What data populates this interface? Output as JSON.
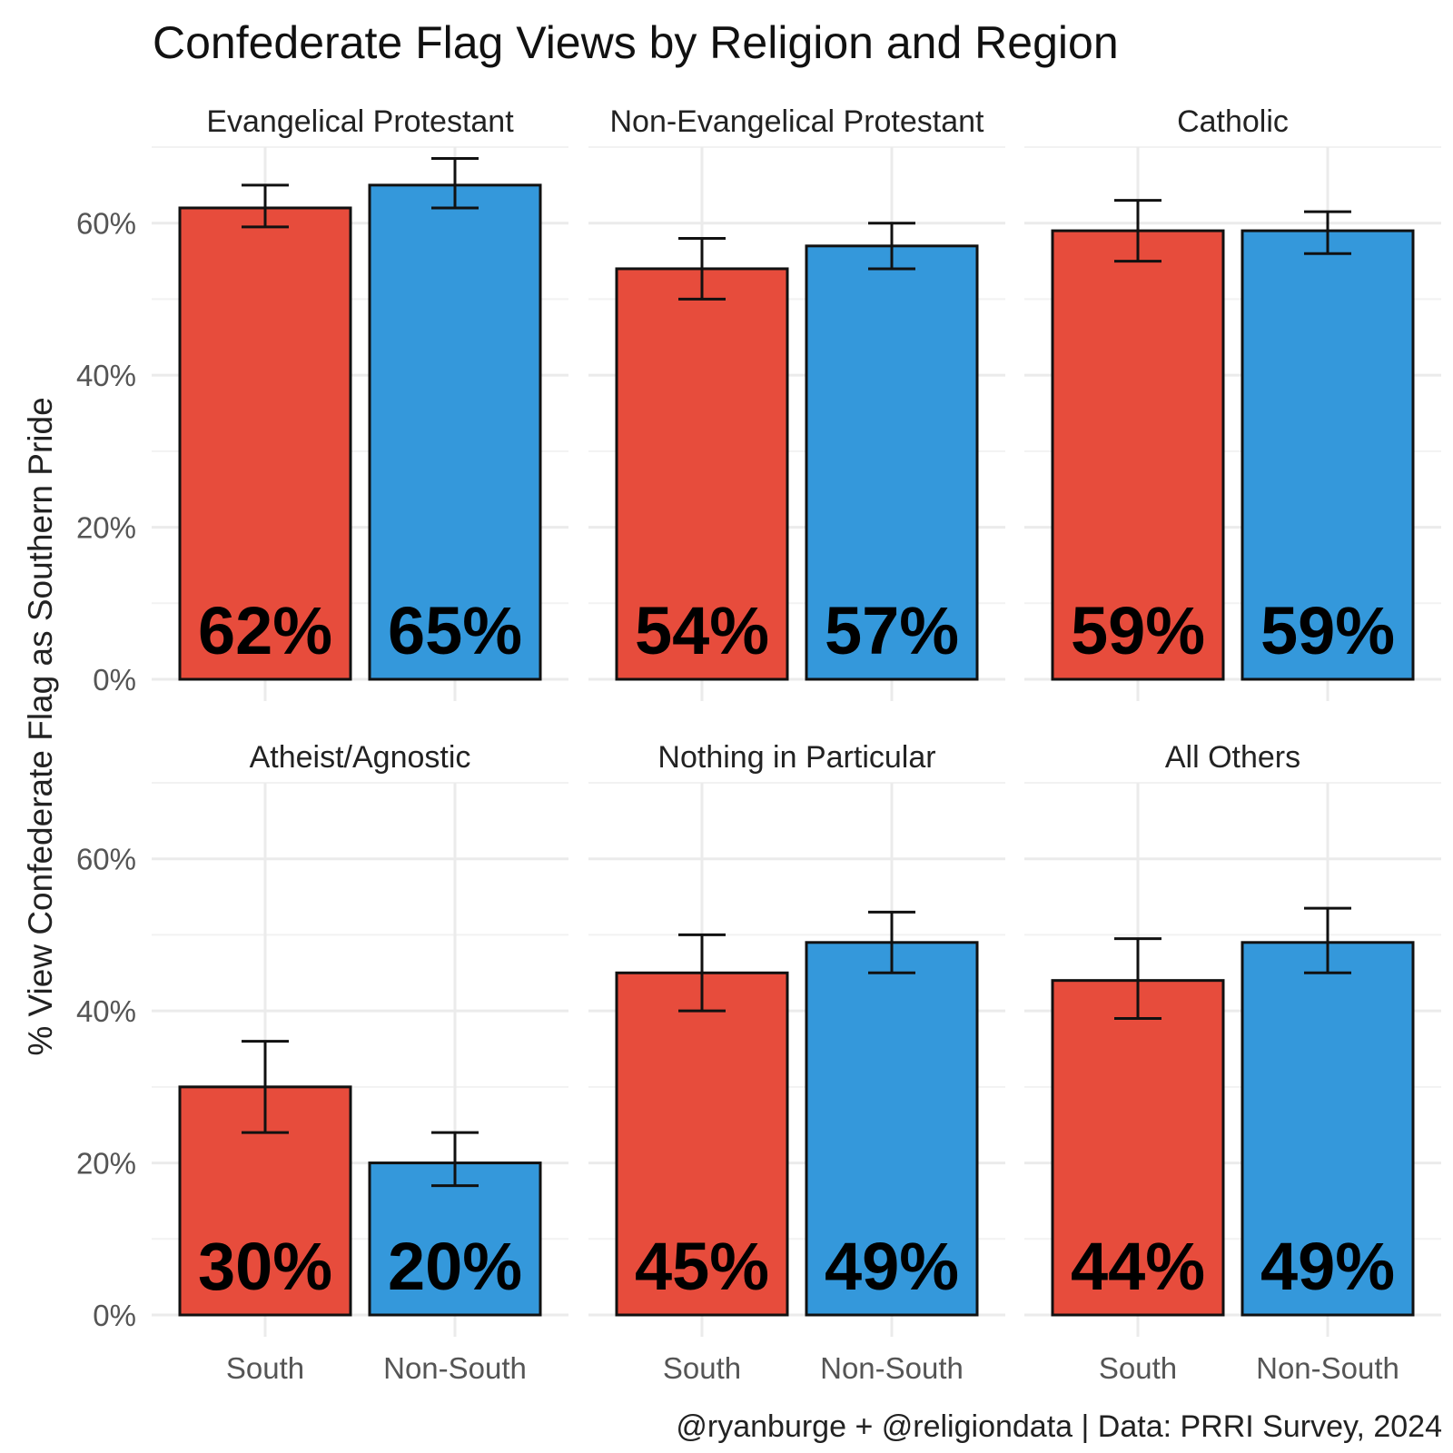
{
  "chart_data": {
    "type": "bar",
    "title": "Confederate Flag Views by Religion and Region",
    "ylabel": "% View Confederate Flag as Southern Pride",
    "xlabel": "",
    "caption": "@ryanburge + @religiondata | Data: PRRI Survey, 2024",
    "ylim": [
      0,
      70
    ],
    "y_ticks": [
      0,
      20,
      40,
      60
    ],
    "y_tick_labels": [
      "0%",
      "20%",
      "40%",
      "60%"
    ],
    "categories": [
      "South",
      "Non-South"
    ],
    "colors": {
      "South": "#e74c3c",
      "Non-South": "#3498db"
    },
    "facets": [
      {
        "name": "Evangelical Protestant",
        "bars": [
          {
            "category": "South",
            "value": 62,
            "lower": 59.5,
            "upper": 65,
            "label": "62%"
          },
          {
            "category": "Non-South",
            "value": 65,
            "lower": 62,
            "upper": 68.5,
            "label": "65%"
          }
        ]
      },
      {
        "name": "Non-Evangelical Protestant",
        "bars": [
          {
            "category": "South",
            "value": 54,
            "lower": 50,
            "upper": 58,
            "label": "54%"
          },
          {
            "category": "Non-South",
            "value": 57,
            "lower": 54,
            "upper": 60,
            "label": "57%"
          }
        ]
      },
      {
        "name": "Catholic",
        "bars": [
          {
            "category": "South",
            "value": 59,
            "lower": 55,
            "upper": 63,
            "label": "59%"
          },
          {
            "category": "Non-South",
            "value": 59,
            "lower": 56,
            "upper": 61.5,
            "label": "59%"
          }
        ]
      },
      {
        "name": "Atheist/Agnostic",
        "bars": [
          {
            "category": "South",
            "value": 30,
            "lower": 24,
            "upper": 36,
            "label": "30%"
          },
          {
            "category": "Non-South",
            "value": 20,
            "lower": 17,
            "upper": 24,
            "label": "20%"
          }
        ]
      },
      {
        "name": "Nothing in Particular",
        "bars": [
          {
            "category": "South",
            "value": 45,
            "lower": 40,
            "upper": 50,
            "label": "45%"
          },
          {
            "category": "Non-South",
            "value": 49,
            "lower": 45,
            "upper": 53,
            "label": "49%"
          }
        ]
      },
      {
        "name": "All Others",
        "bars": [
          {
            "category": "South",
            "value": 44,
            "lower": 39,
            "upper": 49.5,
            "label": "44%"
          },
          {
            "category": "Non-South",
            "value": 49,
            "lower": 45,
            "upper": 53.5,
            "label": "49%"
          }
        ]
      }
    ]
  }
}
